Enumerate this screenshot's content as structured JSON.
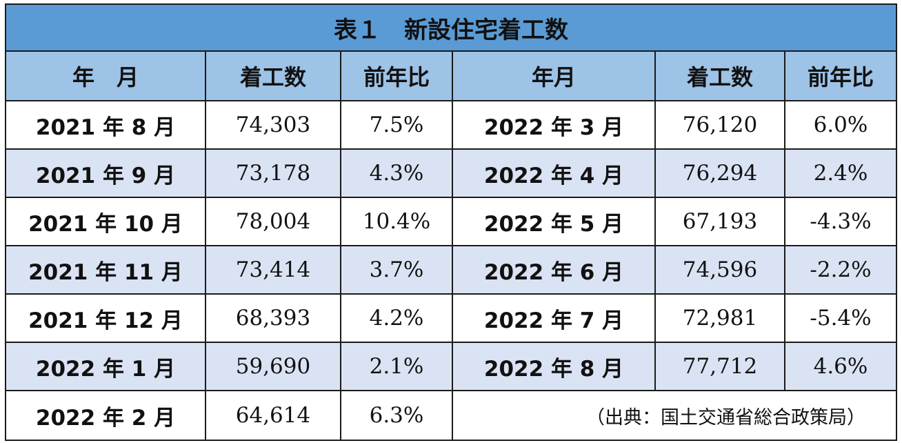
{
  "title": "表１　新設住宅着工数",
  "headers": {
    "left_month": "年　月",
    "left_starts": "着工数",
    "left_yoy": "前年比",
    "right_month": "年月",
    "right_starts": "着工数",
    "right_yoy": "前年比"
  },
  "rows": [
    {
      "left": {
        "month": "2021 年 8 月",
        "starts": "74,303",
        "yoy": "7.5%"
      },
      "right": {
        "month": "2022 年 3 月",
        "starts": "76,120",
        "yoy": "6.0%"
      }
    },
    {
      "left": {
        "month": "2021 年 9 月",
        "starts": "73,178",
        "yoy": "4.3%"
      },
      "right": {
        "month": "2022 年 4 月",
        "starts": "76,294",
        "yoy": "2.4%"
      }
    },
    {
      "left": {
        "month": "2021 年 10 月",
        "starts": "78,004",
        "yoy": "10.4%"
      },
      "right": {
        "month": "2022 年 5 月",
        "starts": "67,193",
        "yoy": "-4.3%"
      }
    },
    {
      "left": {
        "month": "2021 年 11 月",
        "starts": "73,414",
        "yoy": "3.7%"
      },
      "right": {
        "month": "2022 年 6 月",
        "starts": "74,596",
        "yoy": "-2.2%"
      }
    },
    {
      "left": {
        "month": "2021 年 12 月",
        "starts": "68,393",
        "yoy": "4.2%"
      },
      "right": {
        "month": "2022 年 7 月",
        "starts": "72,981",
        "yoy": "-5.4%"
      }
    },
    {
      "left": {
        "month": "2022 年 1 月",
        "starts": "59,690",
        "yoy": "2.1%"
      },
      "right": {
        "month": "2022 年 8 月",
        "starts": "77,712",
        "yoy": "4.6%"
      }
    }
  ],
  "last_row": {
    "left": {
      "month": "2022 年 2 月",
      "starts": "64,614",
      "yoy": "6.3%"
    },
    "source": "（出典：国土交通省総合政策局）"
  },
  "colors": {
    "title_bg": "#5b9bd5",
    "header_bg": "#9dc3e6",
    "shaded_row_bg": "#dae3f3",
    "border": "#1a1a1a"
  }
}
